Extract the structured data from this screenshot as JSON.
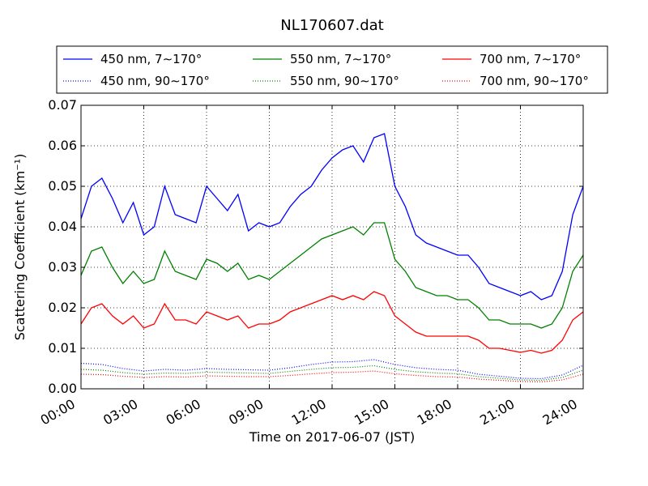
{
  "chart_data": {
    "type": "line",
    "title": "NL170607.dat",
    "xlabel": "Time on 2017-06-07 (JST)",
    "ylabel": "Scattering Coefficient (km⁻¹)",
    "xlim": [
      0,
      24
    ],
    "ylim": [
      0,
      0.07
    ],
    "x_ticks": [
      {
        "v": 0,
        "label": "00:00"
      },
      {
        "v": 3,
        "label": "03:00"
      },
      {
        "v": 6,
        "label": "06:00"
      },
      {
        "v": 9,
        "label": "09:00"
      },
      {
        "v": 12,
        "label": "12:00"
      },
      {
        "v": 15,
        "label": "15:00"
      },
      {
        "v": 18,
        "label": "18:00"
      },
      {
        "v": 21,
        "label": "21:00"
      },
      {
        "v": 24,
        "label": "24:00"
      }
    ],
    "y_ticks": [
      {
        "v": 0,
        "label": "0.00"
      },
      {
        "v": 0.01,
        "label": "0.01"
      },
      {
        "v": 0.02,
        "label": "0.02"
      },
      {
        "v": 0.03,
        "label": "0.03"
      },
      {
        "v": 0.04,
        "label": "0.04"
      },
      {
        "v": 0.05,
        "label": "0.05"
      },
      {
        "v": 0.06,
        "label": "0.06"
      },
      {
        "v": 0.07,
        "label": "0.07"
      }
    ],
    "grid": true,
    "legend_position": "top",
    "x_unit": "hours",
    "series": [
      {
        "name": "450 nm, 7∼170°",
        "color": "#0000ff",
        "style": "solid",
        "x": [
          0,
          0.5,
          1,
          1.5,
          2,
          2.5,
          3,
          3.5,
          4,
          4.5,
          5,
          5.5,
          6,
          6.5,
          7,
          7.5,
          8,
          8.5,
          9,
          9.5,
          10,
          10.5,
          11,
          11.5,
          12,
          12.5,
          13,
          13.5,
          14,
          14.5,
          15,
          15.5,
          16,
          16.5,
          17,
          17.5,
          18,
          18.5,
          19,
          19.5,
          20,
          20.5,
          21,
          21.5,
          22,
          22.5,
          23,
          23.5,
          24
        ],
        "y": [
          0.042,
          0.05,
          0.052,
          0.047,
          0.041,
          0.046,
          0.038,
          0.04,
          0.05,
          0.043,
          0.042,
          0.041,
          0.05,
          0.047,
          0.044,
          0.048,
          0.039,
          0.041,
          0.04,
          0.041,
          0.045,
          0.048,
          0.05,
          0.054,
          0.057,
          0.059,
          0.06,
          0.056,
          0.062,
          0.063,
          0.05,
          0.045,
          0.038,
          0.036,
          0.035,
          0.034,
          0.033,
          0.033,
          0.03,
          0.026,
          0.025,
          0.024,
          0.023,
          0.024,
          0.022,
          0.023,
          0.029,
          0.043,
          0.05
        ]
      },
      {
        "name": "450 nm, 90∼170°",
        "color": "#0000ff",
        "style": "dotted",
        "x": [
          0,
          1,
          2,
          3,
          4,
          5,
          6,
          7,
          8,
          9,
          10,
          11,
          12,
          13,
          14,
          15,
          16,
          17,
          18,
          19,
          20,
          21,
          22,
          23,
          24
        ],
        "y": [
          0.0063,
          0.006,
          0.005,
          0.0044,
          0.0048,
          0.0046,
          0.005,
          0.0048,
          0.0047,
          0.0046,
          0.0052,
          0.006,
          0.0066,
          0.0067,
          0.0072,
          0.006,
          0.0052,
          0.0048,
          0.0046,
          0.0036,
          0.0031,
          0.0026,
          0.0025,
          0.0034,
          0.0058
        ]
      },
      {
        "name": "550 nm, 7∼170°",
        "color": "#008000",
        "style": "solid",
        "x": [
          0,
          0.5,
          1,
          1.5,
          2,
          2.5,
          3,
          3.5,
          4,
          4.5,
          5,
          5.5,
          6,
          6.5,
          7,
          7.5,
          8,
          8.5,
          9,
          9.5,
          10,
          10.5,
          11,
          11.5,
          12,
          12.5,
          13,
          13.5,
          14,
          14.5,
          15,
          15.5,
          16,
          16.5,
          17,
          17.5,
          18,
          18.5,
          19,
          19.5,
          20,
          20.5,
          21,
          21.5,
          22,
          22.5,
          23,
          23.5,
          24
        ],
        "y": [
          0.028,
          0.034,
          0.035,
          0.03,
          0.026,
          0.029,
          0.026,
          0.027,
          0.034,
          0.029,
          0.028,
          0.027,
          0.032,
          0.031,
          0.029,
          0.031,
          0.027,
          0.028,
          0.027,
          0.029,
          0.031,
          0.033,
          0.035,
          0.037,
          0.038,
          0.039,
          0.04,
          0.038,
          0.041,
          0.041,
          0.032,
          0.029,
          0.025,
          0.024,
          0.023,
          0.023,
          0.022,
          0.022,
          0.02,
          0.017,
          0.017,
          0.016,
          0.016,
          0.016,
          0.015,
          0.016,
          0.02,
          0.029,
          0.033
        ]
      },
      {
        "name": "550 nm, 90∼170°",
        "color": "#008000",
        "style": "dotted",
        "x": [
          0,
          1,
          2,
          3,
          4,
          5,
          6,
          7,
          8,
          9,
          10,
          11,
          12,
          13,
          14,
          15,
          16,
          17,
          18,
          19,
          20,
          21,
          22,
          23,
          24
        ],
        "y": [
          0.0048,
          0.0046,
          0.004,
          0.0036,
          0.0039,
          0.0038,
          0.0041,
          0.004,
          0.0039,
          0.0038,
          0.0043,
          0.0048,
          0.0052,
          0.0053,
          0.0057,
          0.0048,
          0.0042,
          0.0039,
          0.0037,
          0.003,
          0.0026,
          0.0022,
          0.0021,
          0.0028,
          0.0046
        ]
      },
      {
        "name": "700 nm, 7∼170°",
        "color": "#ff0000",
        "style": "solid",
        "x": [
          0,
          0.5,
          1,
          1.5,
          2,
          2.5,
          3,
          3.5,
          4,
          4.5,
          5,
          5.5,
          6,
          6.5,
          7,
          7.5,
          8,
          8.5,
          9,
          9.5,
          10,
          10.5,
          11,
          11.5,
          12,
          12.5,
          13,
          13.5,
          14,
          14.5,
          15,
          15.5,
          16,
          16.5,
          17,
          17.5,
          18,
          18.5,
          19,
          19.5,
          20,
          20.5,
          21,
          21.5,
          22,
          22.5,
          23,
          23.5,
          24
        ],
        "y": [
          0.016,
          0.02,
          0.021,
          0.018,
          0.016,
          0.018,
          0.015,
          0.016,
          0.021,
          0.017,
          0.017,
          0.016,
          0.019,
          0.018,
          0.017,
          0.018,
          0.015,
          0.016,
          0.016,
          0.017,
          0.019,
          0.02,
          0.021,
          0.022,
          0.023,
          0.022,
          0.023,
          0.022,
          0.024,
          0.023,
          0.018,
          0.016,
          0.014,
          0.013,
          0.013,
          0.013,
          0.013,
          0.013,
          0.012,
          0.01,
          0.01,
          0.0095,
          0.009,
          0.0095,
          0.0088,
          0.0095,
          0.012,
          0.017,
          0.019
        ]
      },
      {
        "name": "700 nm, 90∼170°",
        "color": "#ff0000",
        "style": "dotted",
        "x": [
          0,
          1,
          2,
          3,
          4,
          5,
          6,
          7,
          8,
          9,
          10,
          11,
          12,
          13,
          14,
          15,
          16,
          17,
          18,
          19,
          20,
          21,
          22,
          23,
          24
        ],
        "y": [
          0.0036,
          0.0035,
          0.0031,
          0.0028,
          0.003,
          0.0029,
          0.0032,
          0.0031,
          0.003,
          0.003,
          0.0033,
          0.0037,
          0.004,
          0.0041,
          0.0044,
          0.0037,
          0.0033,
          0.003,
          0.0029,
          0.0024,
          0.0021,
          0.0018,
          0.0017,
          0.0022,
          0.0036
        ]
      }
    ]
  }
}
